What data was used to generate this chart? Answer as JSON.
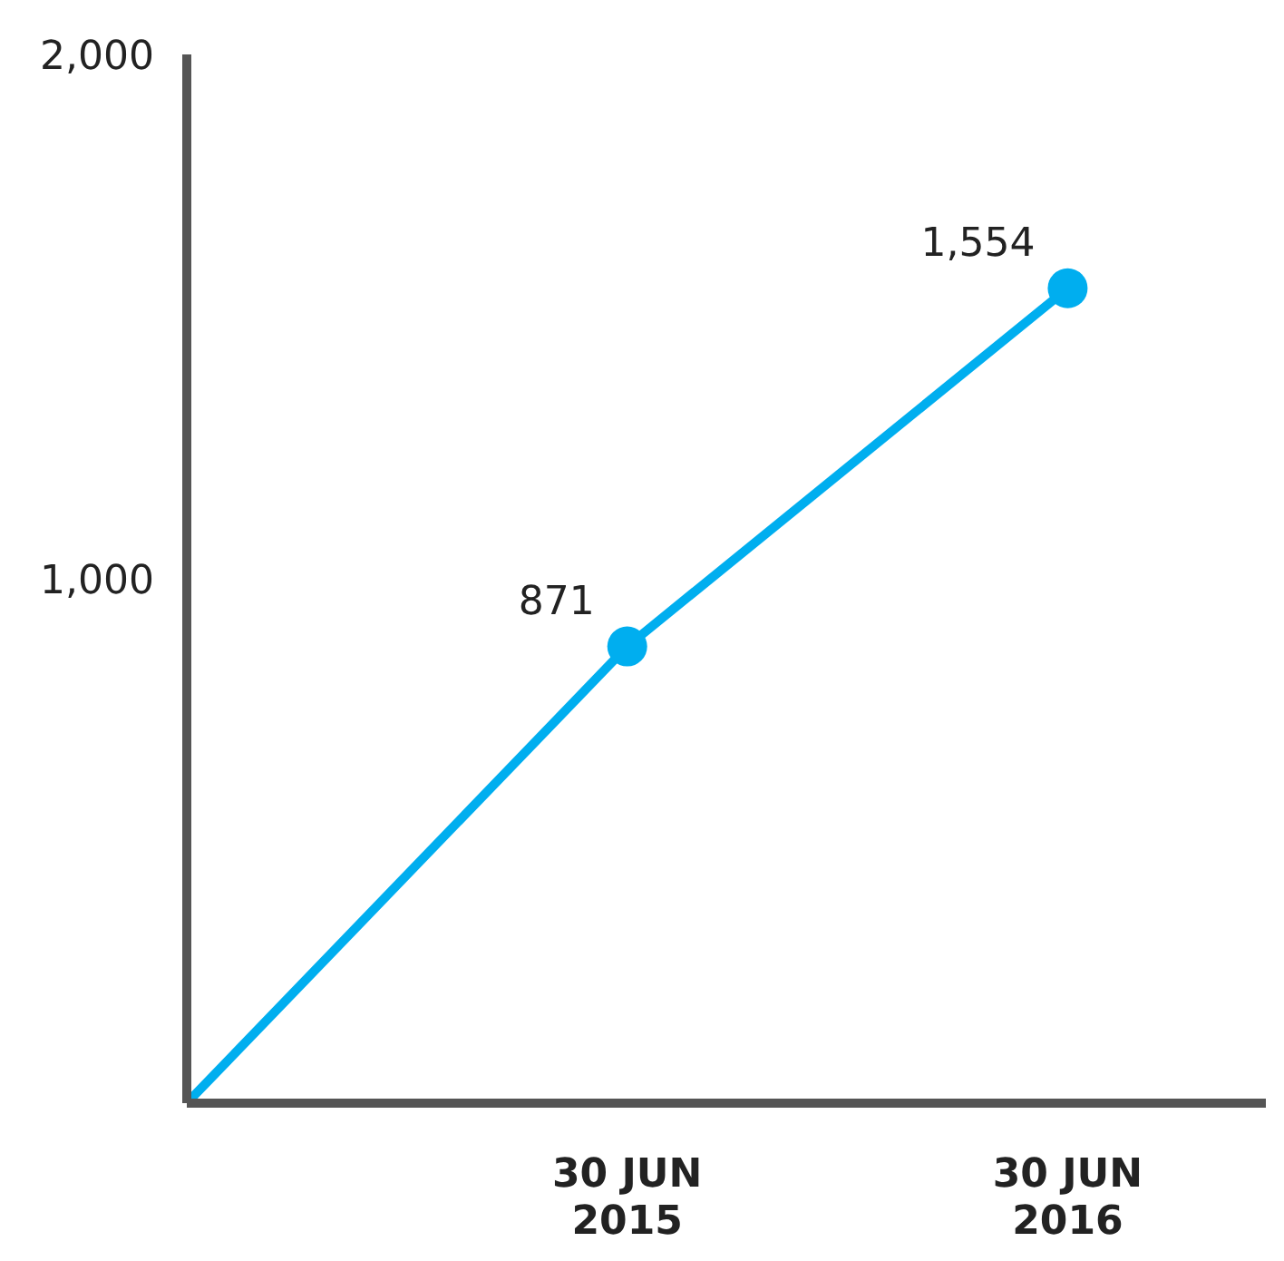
{
  "chart_data": {
    "type": "line",
    "categories": [
      null,
      "30 JUN 2015",
      "30 JUN 2016"
    ],
    "series": [
      {
        "color": "#00aeef",
        "values": [
          0,
          871,
          1554
        ],
        "value_labels": [
          null,
          "871",
          "1,554"
        ]
      }
    ],
    "ylim": [
      0,
      2000
    ],
    "yticks": [
      {
        "value": 1000,
        "label": "1,000"
      },
      {
        "value": 2000,
        "label": "2,000"
      }
    ],
    "marker": "circle"
  }
}
